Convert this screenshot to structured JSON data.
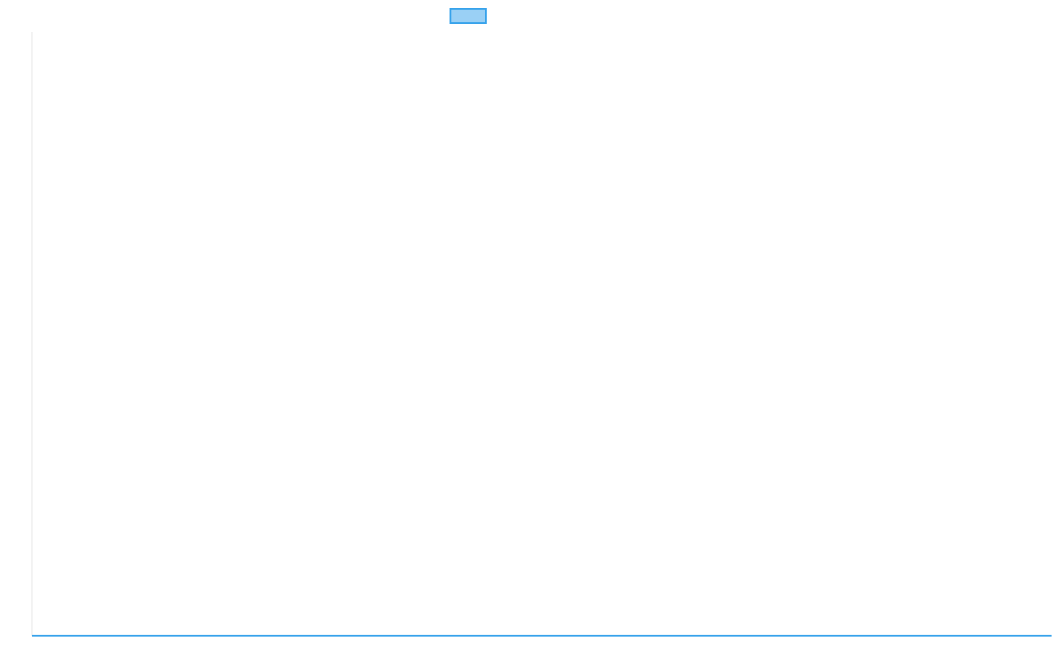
{
  "chart_data": {
    "type": "line",
    "title": "",
    "xlabel": "",
    "ylabel": "",
    "categories": [],
    "series": [
      {
        "values": [],
        "color": "#36a2eb",
        "fill_color": "#9ad0f5"
      }
    ],
    "grid": false,
    "legend": "top",
    "legend_label": ""
  },
  "colors": {
    "axis": "#e5e5e5",
    "series": "#36a2eb",
    "legend_fill": "#9ad0f5"
  }
}
